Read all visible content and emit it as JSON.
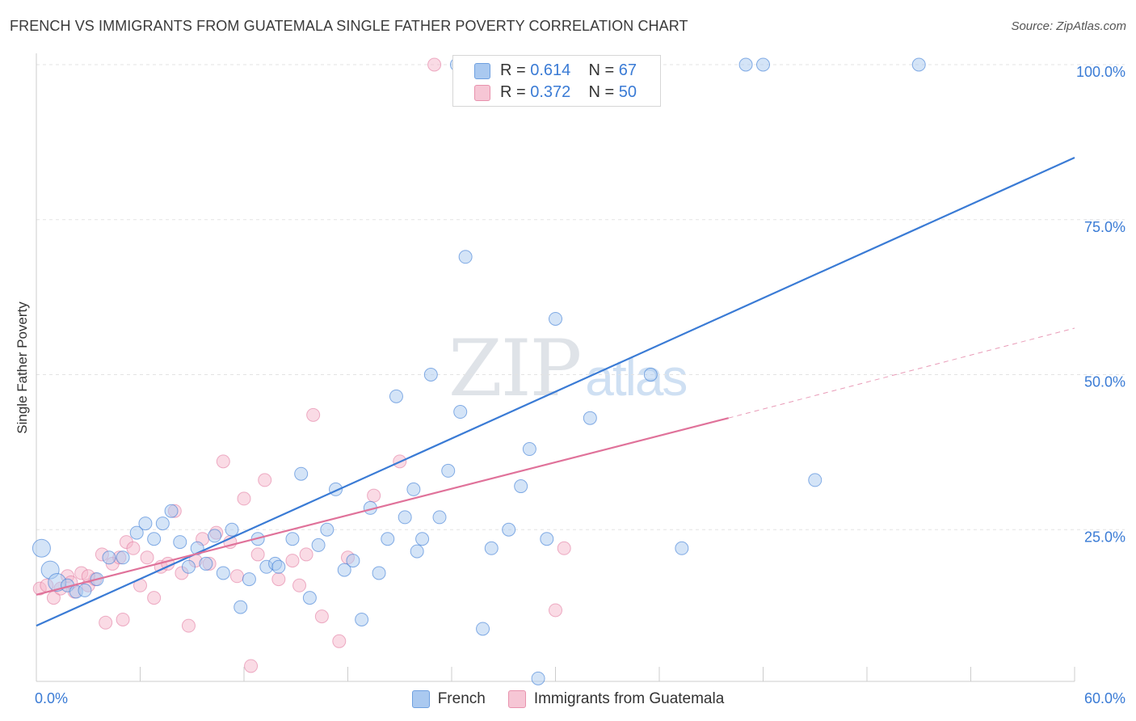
{
  "header": {
    "title": "FRENCH VS IMMIGRANTS FROM GUATEMALA SINGLE FATHER POVERTY CORRELATION CHART",
    "source": "Source: ZipAtlas.com"
  },
  "watermark": {
    "zip": "ZIP",
    "atlas": "atlas"
  },
  "legend": {
    "rows": [
      {
        "r_label": "R =",
        "r_value": "0.614",
        "n_label": "N =",
        "n_value": "67",
        "color": "#aac9f0"
      },
      {
        "r_label": "R =",
        "r_value": "0.372",
        "n_label": "N =",
        "n_value": "50",
        "color": "#f6b8cb"
      }
    ]
  },
  "bottom_legend": {
    "french": "French",
    "guatemala": "Immigrants from Guatemala"
  },
  "chart_data": {
    "type": "scatter",
    "xlabel": "",
    "ylabel": "Single Father Poverty",
    "xlim": [
      0,
      60
    ],
    "ylim": [
      0,
      100
    ],
    "x_tick_labels": [
      "0.0%",
      "60.0%"
    ],
    "y_tick_labels": [
      "25.0%",
      "50.0%",
      "75.0%",
      "100.0%"
    ],
    "y_ticks": [
      25,
      50,
      75,
      100
    ],
    "grid": true,
    "colors": {
      "french": "#3a7bd5",
      "french_fill": "#aac9f0",
      "guatemala": "#e0729a",
      "guatemala_fill": "#f6b8cb"
    },
    "series": [
      {
        "name": "French",
        "trend": {
          "x": [
            0,
            60
          ],
          "y": [
            9.5,
            85
          ]
        },
        "points": [
          [
            0.3,
            22.0
          ],
          [
            0.8,
            18.5
          ],
          [
            1.2,
            16.5
          ],
          [
            1.8,
            16.0
          ],
          [
            2.3,
            15.0
          ],
          [
            2.8,
            15.2
          ],
          [
            3.5,
            17.0
          ],
          [
            4.2,
            20.5
          ],
          [
            5.0,
            20.5
          ],
          [
            5.8,
            24.5
          ],
          [
            6.3,
            26.0
          ],
          [
            6.8,
            23.5
          ],
          [
            7.3,
            26.0
          ],
          [
            7.8,
            28.0
          ],
          [
            8.3,
            23.0
          ],
          [
            8.8,
            19.0
          ],
          [
            9.3,
            22.0
          ],
          [
            9.8,
            19.5
          ],
          [
            10.3,
            24.0
          ],
          [
            10.8,
            18.0
          ],
          [
            11.3,
            25.0
          ],
          [
            11.8,
            12.5
          ],
          [
            12.3,
            17.0
          ],
          [
            12.8,
            23.5
          ],
          [
            13.3,
            19.0
          ],
          [
            13.8,
            19.5
          ],
          [
            14.8,
            23.5
          ],
          [
            15.3,
            34.0
          ],
          [
            15.8,
            14.0
          ],
          [
            16.3,
            22.5
          ],
          [
            16.8,
            25.0
          ],
          [
            17.3,
            31.5
          ],
          [
            17.8,
            18.5
          ],
          [
            18.3,
            20.0
          ],
          [
            18.8,
            10.5
          ],
          [
            19.3,
            28.5
          ],
          [
            19.8,
            18.0
          ],
          [
            20.3,
            23.5
          ],
          [
            20.8,
            46.5
          ],
          [
            21.3,
            27.0
          ],
          [
            21.8,
            31.5
          ],
          [
            22.3,
            23.5
          ],
          [
            22.8,
            50.0
          ],
          [
            23.3,
            27.0
          ],
          [
            23.8,
            34.5
          ],
          [
            24.5,
            44.0
          ],
          [
            24.8,
            69.0
          ],
          [
            25.8,
            9.0
          ],
          [
            26.3,
            22.0
          ],
          [
            27.3,
            25.0
          ],
          [
            28.0,
            32.0
          ],
          [
            28.5,
            38.0
          ],
          [
            29.0,
            1.0
          ],
          [
            29.5,
            23.5
          ],
          [
            30.0,
            59.0
          ],
          [
            32.0,
            43.0
          ],
          [
            35.5,
            50.0
          ],
          [
            37.3,
            22.0
          ],
          [
            41.0,
            100
          ],
          [
            42.0,
            100
          ],
          [
            45.0,
            33.0
          ],
          [
            51.0,
            100
          ],
          [
            24.3,
            100
          ],
          [
            25.0,
            100
          ],
          [
            33.5,
            100
          ],
          [
            22.0,
            21.5
          ],
          [
            14.0,
            19.0
          ]
        ]
      },
      {
        "name": "Immigrants from Guatemala",
        "trend": {
          "x": [
            0,
            40
          ],
          "y": [
            14.5,
            43.0
          ]
        },
        "trend_dashed": {
          "x": [
            40,
            60
          ],
          "y": [
            43.0,
            57.5
          ]
        },
        "points": [
          [
            0.2,
            15.5
          ],
          [
            0.6,
            16.0
          ],
          [
            1.0,
            14.0
          ],
          [
            1.4,
            15.5
          ],
          [
            1.8,
            17.5
          ],
          [
            2.2,
            15.0
          ],
          [
            2.6,
            18.0
          ],
          [
            3.0,
            16.0
          ],
          [
            3.4,
            17.0
          ],
          [
            3.8,
            21.0
          ],
          [
            4.0,
            10.0
          ],
          [
            4.4,
            19.5
          ],
          [
            4.8,
            20.5
          ],
          [
            5.0,
            10.5
          ],
          [
            5.2,
            23.0
          ],
          [
            5.6,
            22.0
          ],
          [
            6.0,
            16.0
          ],
          [
            6.4,
            20.5
          ],
          [
            6.8,
            14.0
          ],
          [
            7.2,
            19.0
          ],
          [
            7.6,
            19.5
          ],
          [
            8.0,
            28.0
          ],
          [
            8.4,
            18.0
          ],
          [
            8.8,
            9.5
          ],
          [
            9.2,
            20.0
          ],
          [
            9.6,
            23.5
          ],
          [
            10.0,
            19.5
          ],
          [
            10.4,
            24.5
          ],
          [
            10.8,
            36.0
          ],
          [
            11.2,
            23.0
          ],
          [
            11.6,
            17.5
          ],
          [
            12.0,
            30.0
          ],
          [
            12.4,
            3.0
          ],
          [
            12.8,
            21.0
          ],
          [
            13.2,
            33.0
          ],
          [
            14.0,
            17.0
          ],
          [
            14.8,
            20.0
          ],
          [
            15.2,
            16.0
          ],
          [
            15.6,
            21.0
          ],
          [
            16.0,
            43.5
          ],
          [
            16.5,
            11.0
          ],
          [
            17.5,
            7.0
          ],
          [
            18.0,
            20.5
          ],
          [
            19.5,
            30.5
          ],
          [
            21.0,
            36.0
          ],
          [
            30.0,
            12.0
          ],
          [
            30.5,
            22.0
          ],
          [
            23.0,
            100
          ],
          [
            3.0,
            17.5
          ],
          [
            2.0,
            16.5
          ]
        ]
      }
    ]
  }
}
